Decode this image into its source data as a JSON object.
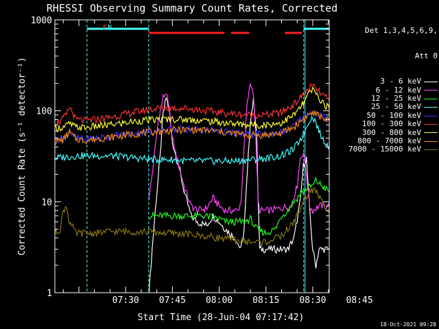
{
  "title": "RHESSI Observing Summary Count Rates, Corrected",
  "header_right": "Det 1,3,4,5,6,9,",
  "attenuator": "Att 0",
  "date_stamp": "18-Oct-2021 09:28",
  "flag_labels": {
    "n": "N",
    "f": "F"
  },
  "chart_data": {
    "type": "line",
    "title": "RHESSI Observing Summary Count Rates, Corrected",
    "xlabel": "Start Time (28-Jun-04 07:17:42)",
    "ylabel": "Corrected Count Rate (s⁻¹ detector⁻¹)",
    "yscale": "log",
    "ylim": [
      1,
      1000
    ],
    "xlim_minutes": [
      7.3,
      95.3
    ],
    "x_ticks": [
      {
        "label": "07:30",
        "minute": 30
      },
      {
        "label": "07:45",
        "minute": 45
      },
      {
        "label": "08:00",
        "minute": 60
      },
      {
        "label": "08:15",
        "minute": 75
      },
      {
        "label": "08:30",
        "minute": 90
      },
      {
        "label": "08:45",
        "minute": 105
      }
    ],
    "y_ticks": [
      {
        "label": "1",
        "value": 1
      },
      {
        "label": "10",
        "value": 10
      },
      {
        "label": "100",
        "value": 100
      },
      {
        "label": "1000",
        "value": 1000
      }
    ],
    "time_base": "07:00",
    "night_segments_minutes": [
      [
        17.6,
        37.4
      ],
      [
        87.1,
        110.0
      ]
    ],
    "saa_segments_minutes": [
      [
        37.5,
        61.7
      ],
      [
        63.8,
        69.6
      ],
      [
        81.1,
        86.5
      ]
    ],
    "series": [
      {
        "name": "3 - 6 keV",
        "color": "#ffffff",
        "points": [
          [
            37.5,
            1
          ],
          [
            38.5,
            3
          ],
          [
            39.5,
            8
          ],
          [
            41,
            30
          ],
          [
            42,
            90
          ],
          [
            43,
            140
          ],
          [
            44,
            100
          ],
          [
            45,
            45
          ],
          [
            47,
            25
          ],
          [
            49,
            12
          ],
          [
            51,
            7
          ],
          [
            53,
            6
          ],
          [
            56,
            5.5
          ],
          [
            58,
            7
          ],
          [
            60,
            6
          ],
          [
            62,
            5
          ],
          [
            65,
            4
          ],
          [
            67,
            3
          ],
          [
            68,
            5
          ],
          [
            69,
            20
          ],
          [
            70,
            80
          ],
          [
            71,
            130
          ],
          [
            72,
            60
          ],
          [
            72.5,
            10
          ],
          [
            73,
            3
          ],
          [
            76,
            3
          ],
          [
            80,
            3
          ],
          [
            82,
            3
          ],
          [
            84,
            4
          ],
          [
            86,
            10
          ],
          [
            87,
            25
          ],
          [
            88,
            30
          ],
          [
            89,
            8
          ],
          [
            90,
            3
          ],
          [
            91,
            2
          ],
          [
            92,
            3
          ],
          [
            95.3,
            3
          ]
        ]
      },
      {
        "name": "6 - 12 keV",
        "color": "#ff44ff",
        "points": [
          [
            37.5,
            11
          ],
          [
            38.5,
            20
          ],
          [
            39.5,
            40
          ],
          [
            40.5,
            80
          ],
          [
            42,
            140
          ],
          [
            43,
            160
          ],
          [
            44,
            100
          ],
          [
            45,
            50
          ],
          [
            47,
            25
          ],
          [
            49,
            14
          ],
          [
            51,
            9
          ],
          [
            53,
            8
          ],
          [
            56,
            8.5
          ],
          [
            58,
            11
          ],
          [
            60,
            9
          ],
          [
            62,
            8
          ],
          [
            64,
            8
          ],
          [
            66,
            8
          ],
          [
            67,
            10
          ],
          [
            68,
            40
          ],
          [
            69,
            120
          ],
          [
            70,
            200
          ],
          [
            71,
            160
          ],
          [
            72,
            30
          ],
          [
            72.5,
            10
          ],
          [
            73,
            8
          ],
          [
            76,
            8
          ],
          [
            80,
            8.5
          ],
          [
            83,
            9
          ],
          [
            85,
            15
          ],
          [
            86,
            30
          ],
          [
            87,
            35
          ],
          [
            88,
            20
          ],
          [
            89,
            9
          ],
          [
            90,
            8
          ],
          [
            92,
            9
          ],
          [
            95.3,
            9
          ]
        ]
      },
      {
        "name": "12 - 25 keV",
        "color": "#22ff22",
        "points": [
          [
            37.5,
            7
          ],
          [
            40,
            7
          ],
          [
            45,
            7
          ],
          [
            50,
            7
          ],
          [
            55,
            7
          ],
          [
            60,
            6.5
          ],
          [
            62,
            6
          ],
          [
            65,
            6
          ],
          [
            68,
            6
          ],
          [
            70,
            6.5
          ],
          [
            72,
            5
          ],
          [
            75,
            4.5
          ],
          [
            78,
            5
          ],
          [
            80,
            7
          ],
          [
            82,
            8
          ],
          [
            84,
            10
          ],
          [
            86,
            12
          ],
          [
            88,
            14
          ],
          [
            90,
            15
          ],
          [
            91,
            17
          ],
          [
            92,
            16
          ],
          [
            94,
            14
          ],
          [
            95.3,
            13
          ]
        ]
      },
      {
        "name": "25 - 50 keV",
        "color": "#44ffff",
        "points": [
          [
            7.3,
            30
          ],
          [
            10,
            31
          ],
          [
            15,
            32
          ],
          [
            20,
            32
          ],
          [
            25,
            32
          ],
          [
            30,
            31
          ],
          [
            35,
            30
          ],
          [
            40,
            29
          ],
          [
            45,
            29
          ],
          [
            50,
            28
          ],
          [
            55,
            28
          ],
          [
            60,
            28
          ],
          [
            65,
            28
          ],
          [
            70,
            29
          ],
          [
            75,
            30
          ],
          [
            80,
            32
          ],
          [
            84,
            38
          ],
          [
            87,
            55
          ],
          [
            89,
            80
          ],
          [
            90,
            85
          ],
          [
            91,
            75
          ],
          [
            92,
            60
          ],
          [
            93,
            50
          ],
          [
            95.3,
            40
          ]
        ]
      },
      {
        "name": "50 - 100 keV",
        "color": "#3333ff",
        "points": [
          [
            7.3,
            48
          ],
          [
            10,
            50
          ],
          [
            12,
            60
          ],
          [
            14,
            50
          ],
          [
            17,
            48
          ],
          [
            20,
            50
          ],
          [
            25,
            52
          ],
          [
            30,
            55
          ],
          [
            35,
            58
          ],
          [
            40,
            60
          ],
          [
            45,
            62
          ],
          [
            50,
            63
          ],
          [
            55,
            62
          ],
          [
            60,
            60
          ],
          [
            65,
            57
          ],
          [
            70,
            55
          ],
          [
            75,
            55
          ],
          [
            80,
            58
          ],
          [
            84,
            68
          ],
          [
            87,
            85
          ],
          [
            89,
            95
          ],
          [
            90,
            98
          ],
          [
            92,
            90
          ],
          [
            95.3,
            80
          ]
        ]
      },
      {
        "name": "100 - 300 keV",
        "color": "#ff3333",
        "points": [
          [
            7.3,
            74
          ],
          [
            9,
            76
          ],
          [
            11,
            90
          ],
          [
            12,
            110
          ],
          [
            13,
            95
          ],
          [
            14,
            80
          ],
          [
            17,
            78
          ],
          [
            20,
            80
          ],
          [
            25,
            85
          ],
          [
            30,
            92
          ],
          [
            35,
            100
          ],
          [
            40,
            106
          ],
          [
            45,
            108
          ],
          [
            50,
            106
          ],
          [
            55,
            101
          ],
          [
            60,
            96
          ],
          [
            65,
            92
          ],
          [
            70,
            90
          ],
          [
            75,
            90
          ],
          [
            80,
            96
          ],
          [
            84,
            118
          ],
          [
            87,
            150
          ],
          [
            89,
            180
          ],
          [
            90,
            185
          ],
          [
            91,
            175
          ],
          [
            93,
            150
          ],
          [
            95.3,
            130
          ]
        ]
      },
      {
        "name": "300 - 800 keV",
        "color": "#ffff33",
        "points": [
          [
            7.3,
            64
          ],
          [
            10,
            66
          ],
          [
            12,
            72
          ],
          [
            14,
            66
          ],
          [
            17,
            65
          ],
          [
            20,
            67
          ],
          [
            25,
            70
          ],
          [
            30,
            74
          ],
          [
            35,
            78
          ],
          [
            40,
            80
          ],
          [
            45,
            81
          ],
          [
            50,
            80
          ],
          [
            55,
            78
          ],
          [
            60,
            75
          ],
          [
            65,
            72
          ],
          [
            70,
            70
          ],
          [
            75,
            70
          ],
          [
            80,
            74
          ],
          [
            84,
            90
          ],
          [
            87,
            120
          ],
          [
            89,
            160
          ],
          [
            90,
            170
          ],
          [
            91,
            155
          ],
          [
            93,
            125
          ],
          [
            95.3,
            105
          ]
        ]
      },
      {
        "name": "800 - 7000 keV",
        "color": "#ff8800",
        "points": [
          [
            7.3,
            46
          ],
          [
            10,
            48
          ],
          [
            12,
            58
          ],
          [
            14,
            49
          ],
          [
            17,
            47
          ],
          [
            20,
            49
          ],
          [
            25,
            51
          ],
          [
            30,
            54
          ],
          [
            35,
            57
          ],
          [
            40,
            59
          ],
          [
            45,
            61
          ],
          [
            50,
            62
          ],
          [
            55,
            61
          ],
          [
            60,
            59
          ],
          [
            65,
            56
          ],
          [
            70,
            54
          ],
          [
            75,
            54
          ],
          [
            80,
            57
          ],
          [
            84,
            66
          ],
          [
            87,
            82
          ],
          [
            89,
            92
          ],
          [
            90,
            95
          ],
          [
            92,
            88
          ],
          [
            95.3,
            78
          ]
        ]
      },
      {
        "name": "7000 - 15000 keV",
        "color": "#887711",
        "points": [
          [
            7.3,
            4.5
          ],
          [
            9,
            5
          ],
          [
            10,
            8
          ],
          [
            11,
            9
          ],
          [
            12,
            6
          ],
          [
            14,
            4.5
          ],
          [
            17,
            4.5
          ],
          [
            20,
            4.5
          ],
          [
            25,
            4.7
          ],
          [
            30,
            4.7
          ],
          [
            35,
            4.7
          ],
          [
            40,
            4.6
          ],
          [
            45,
            4.5
          ],
          [
            50,
            4.4
          ],
          [
            55,
            4.2
          ],
          [
            60,
            4
          ],
          [
            65,
            3.8
          ],
          [
            70,
            3.6
          ],
          [
            75,
            3.6
          ],
          [
            80,
            4.2
          ],
          [
            84,
            6
          ],
          [
            87,
            10
          ],
          [
            89,
            13
          ],
          [
            90,
            13.5
          ],
          [
            91,
            13
          ],
          [
            93,
            10
          ],
          [
            95.3,
            8
          ]
        ]
      }
    ]
  }
}
